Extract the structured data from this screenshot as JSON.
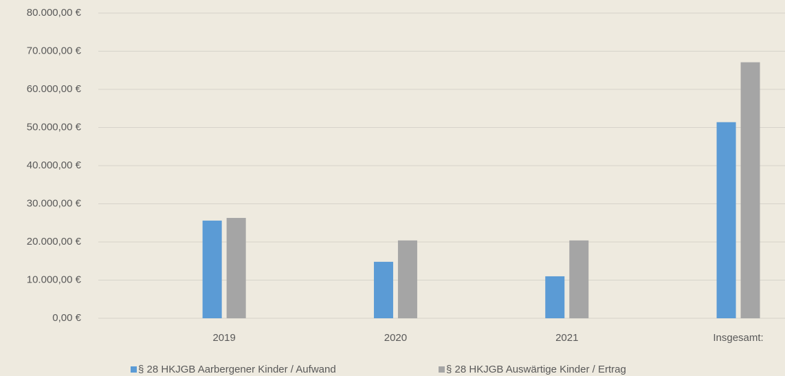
{
  "chart_data": {
    "type": "bar",
    "categories": [
      "2019",
      "2020",
      "2021",
      "Insgesamt:"
    ],
    "series": [
      {
        "name": "§ 28 HKJGB Aarbergener Kinder / Aufwand",
        "color": "#5b9bd5",
        "values": [
          25600,
          14800,
          11000,
          51400
        ]
      },
      {
        "name": "§ 28 HKJGB Auswärtige Kinder / Ertrag",
        "color": "#a5a5a5",
        "values": [
          26300,
          20400,
          20400,
          67100
        ]
      }
    ],
    "ylim": [
      0,
      80000
    ],
    "yticks": [
      {
        "value": 0,
        "label": "0,00 €"
      },
      {
        "value": 10000,
        "label": "10.000,00 €"
      },
      {
        "value": 20000,
        "label": "20.000,00 €"
      },
      {
        "value": 30000,
        "label": "30.000,00 €"
      },
      {
        "value": 40000,
        "label": "40.000,00 €"
      },
      {
        "value": 50000,
        "label": "50.000,00 €"
      },
      {
        "value": 60000,
        "label": "60.000,00 €"
      },
      {
        "value": 70000,
        "label": "70.000,00 €"
      },
      {
        "value": 80000,
        "label": "80.000,00 €"
      }
    ],
    "grid": true,
    "legend": "bottom"
  }
}
